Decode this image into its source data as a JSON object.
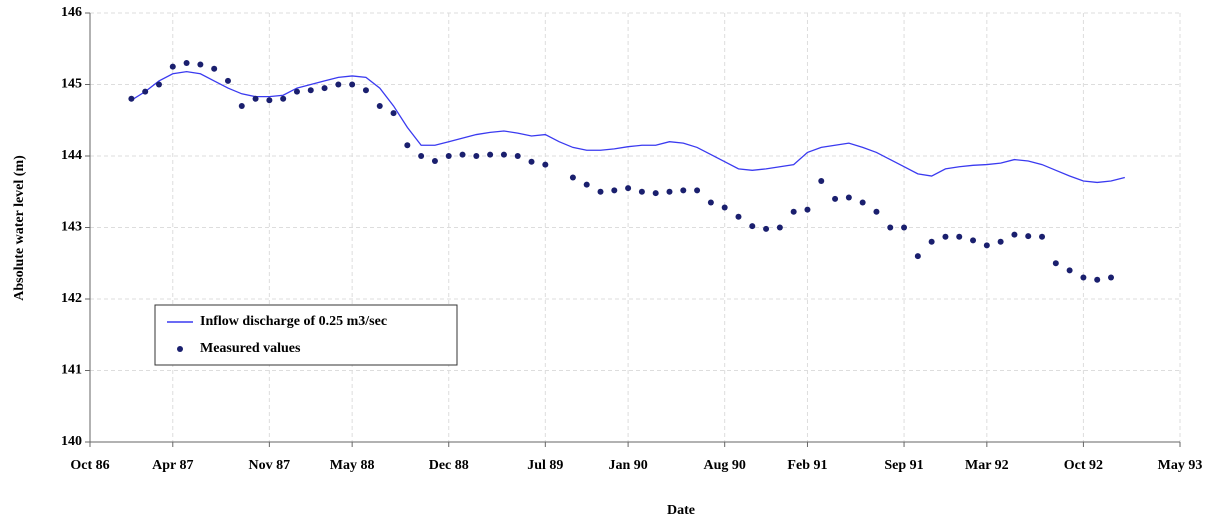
{
  "chart_data": {
    "type": "line",
    "xlabel": "Date",
    "ylabel": "Absolute water level (m)",
    "xlim": [
      "1986-10",
      "1993-05"
    ],
    "xticks": [
      {
        "value": "1986-10",
        "label": "Oct 86"
      },
      {
        "value": "1987-04",
        "label": "Apr 87"
      },
      {
        "value": "1987-11",
        "label": "Nov 87"
      },
      {
        "value": "1988-05",
        "label": "May 88"
      },
      {
        "value": "1988-12",
        "label": "Dec 88"
      },
      {
        "value": "1989-07",
        "label": "Jul 89"
      },
      {
        "value": "1990-01",
        "label": "Jan 90"
      },
      {
        "value": "1990-08",
        "label": "Aug 90"
      },
      {
        "value": "1991-02",
        "label": "Feb 91"
      },
      {
        "value": "1991-09",
        "label": "Sep 91"
      },
      {
        "value": "1992-03",
        "label": "Mar 92"
      },
      {
        "value": "1992-10",
        "label": "Oct 92"
      },
      {
        "value": "1993-05",
        "label": "May 93"
      }
    ],
    "ylim": [
      140,
      146
    ],
    "yticks": [
      140,
      141,
      142,
      143,
      144,
      145,
      146
    ],
    "grid": true,
    "legend": "lower left",
    "series": [
      {
        "name": "Inflow discharge of 0.25 m3/sec",
        "type": "line",
        "color": "#3a3af0",
        "x": [
          "1987-01",
          "1987-02",
          "1987-03",
          "1987-04",
          "1987-05",
          "1987-06",
          "1987-07",
          "1987-08",
          "1987-09",
          "1987-10",
          "1987-11",
          "1987-12",
          "1988-01",
          "1988-02",
          "1988-03",
          "1988-04",
          "1988-05",
          "1988-06",
          "1988-07",
          "1988-08",
          "1988-09",
          "1988-10",
          "1988-11",
          "1988-12",
          "1989-01",
          "1989-02",
          "1989-03",
          "1989-04",
          "1989-05",
          "1989-06",
          "1989-07",
          "1989-08",
          "1989-09",
          "1989-10",
          "1989-11",
          "1989-12",
          "1990-01",
          "1990-02",
          "1990-03",
          "1990-04",
          "1990-05",
          "1990-06",
          "1990-07",
          "1990-08",
          "1990-09",
          "1990-10",
          "1990-11",
          "1990-12",
          "1991-01",
          "1991-02",
          "1991-03",
          "1991-04",
          "1991-05",
          "1991-06",
          "1991-07",
          "1991-08",
          "1991-09",
          "1991-10",
          "1991-11",
          "1991-12",
          "1992-01",
          "1992-02",
          "1992-03",
          "1992-04",
          "1992-05",
          "1992-06",
          "1992-07",
          "1992-08",
          "1992-09",
          "1992-10",
          "1992-11",
          "1992-12",
          "1993-01"
        ],
        "values": [
          144.78,
          144.9,
          145.05,
          145.15,
          145.18,
          145.15,
          145.05,
          144.95,
          144.87,
          144.83,
          144.83,
          144.85,
          144.95,
          145.0,
          145.05,
          145.1,
          145.12,
          145.1,
          144.95,
          144.7,
          144.4,
          144.15,
          144.15,
          144.2,
          144.25,
          144.3,
          144.33,
          144.35,
          144.32,
          144.28,
          144.3,
          144.2,
          144.12,
          144.08,
          144.08,
          144.1,
          144.13,
          144.15,
          144.15,
          144.2,
          144.18,
          144.12,
          144.02,
          143.92,
          143.82,
          143.8,
          143.82,
          143.85,
          143.88,
          144.05,
          144.12,
          144.15,
          144.18,
          144.12,
          144.05,
          143.95,
          143.85,
          143.75,
          143.72,
          143.82,
          143.85,
          143.87,
          143.88,
          143.9,
          143.95,
          143.93,
          143.88,
          143.8,
          143.72,
          143.65,
          143.63,
          143.65,
          143.7
        ]
      },
      {
        "name": "Measured values",
        "type": "scatter",
        "color": "#1a1f6e",
        "x": [
          "1987-01",
          "1987-02",
          "1987-03",
          "1987-04",
          "1987-05",
          "1987-06",
          "1987-07",
          "1987-08",
          "1987-09",
          "1987-10",
          "1987-11",
          "1987-12",
          "1988-01",
          "1988-02",
          "1988-03",
          "1988-04",
          "1988-05",
          "1988-06",
          "1988-07",
          "1988-08",
          "1988-09",
          "1988-10",
          "1988-11",
          "1988-12",
          "1989-01",
          "1989-02",
          "1989-03",
          "1989-04",
          "1989-05",
          "1989-06",
          "1989-07",
          "1989-09",
          "1989-10",
          "1989-11",
          "1989-12",
          "1990-01",
          "1990-02",
          "1990-03",
          "1990-04",
          "1990-05",
          "1990-06",
          "1990-07",
          "1990-08",
          "1990-09",
          "1990-10",
          "1990-11",
          "1990-12",
          "1991-01",
          "1991-02",
          "1991-03",
          "1991-04",
          "1991-05",
          "1991-06",
          "1991-07",
          "1991-08",
          "1991-09",
          "1991-10",
          "1991-11",
          "1991-12",
          "1992-01",
          "1992-02",
          "1992-03",
          "1992-04",
          "1992-05",
          "1992-06",
          "1992-07",
          "1992-08",
          "1992-09",
          "1992-10",
          "1992-11",
          "1992-12"
        ],
        "values": [
          144.8,
          144.9,
          145.0,
          145.25,
          145.3,
          145.28,
          145.22,
          145.05,
          144.7,
          144.8,
          144.78,
          144.8,
          144.9,
          144.92,
          144.95,
          145.0,
          145.0,
          144.92,
          144.7,
          144.6,
          144.15,
          144.0,
          143.93,
          144.0,
          144.02,
          144.0,
          144.02,
          144.02,
          144.0,
          143.92,
          143.88,
          143.7,
          143.6,
          143.5,
          143.52,
          143.55,
          143.5,
          143.48,
          143.5,
          143.52,
          143.52,
          143.35,
          143.28,
          143.15,
          143.02,
          142.98,
          143.0,
          143.22,
          143.25,
          143.65,
          143.4,
          143.42,
          143.35,
          143.22,
          143.0,
          143.0,
          142.6,
          142.8,
          142.87,
          142.87,
          142.82,
          142.75,
          142.8,
          142.9,
          142.88,
          142.87,
          142.5,
          142.4,
          142.3,
          142.27,
          142.3
        ]
      }
    ]
  }
}
